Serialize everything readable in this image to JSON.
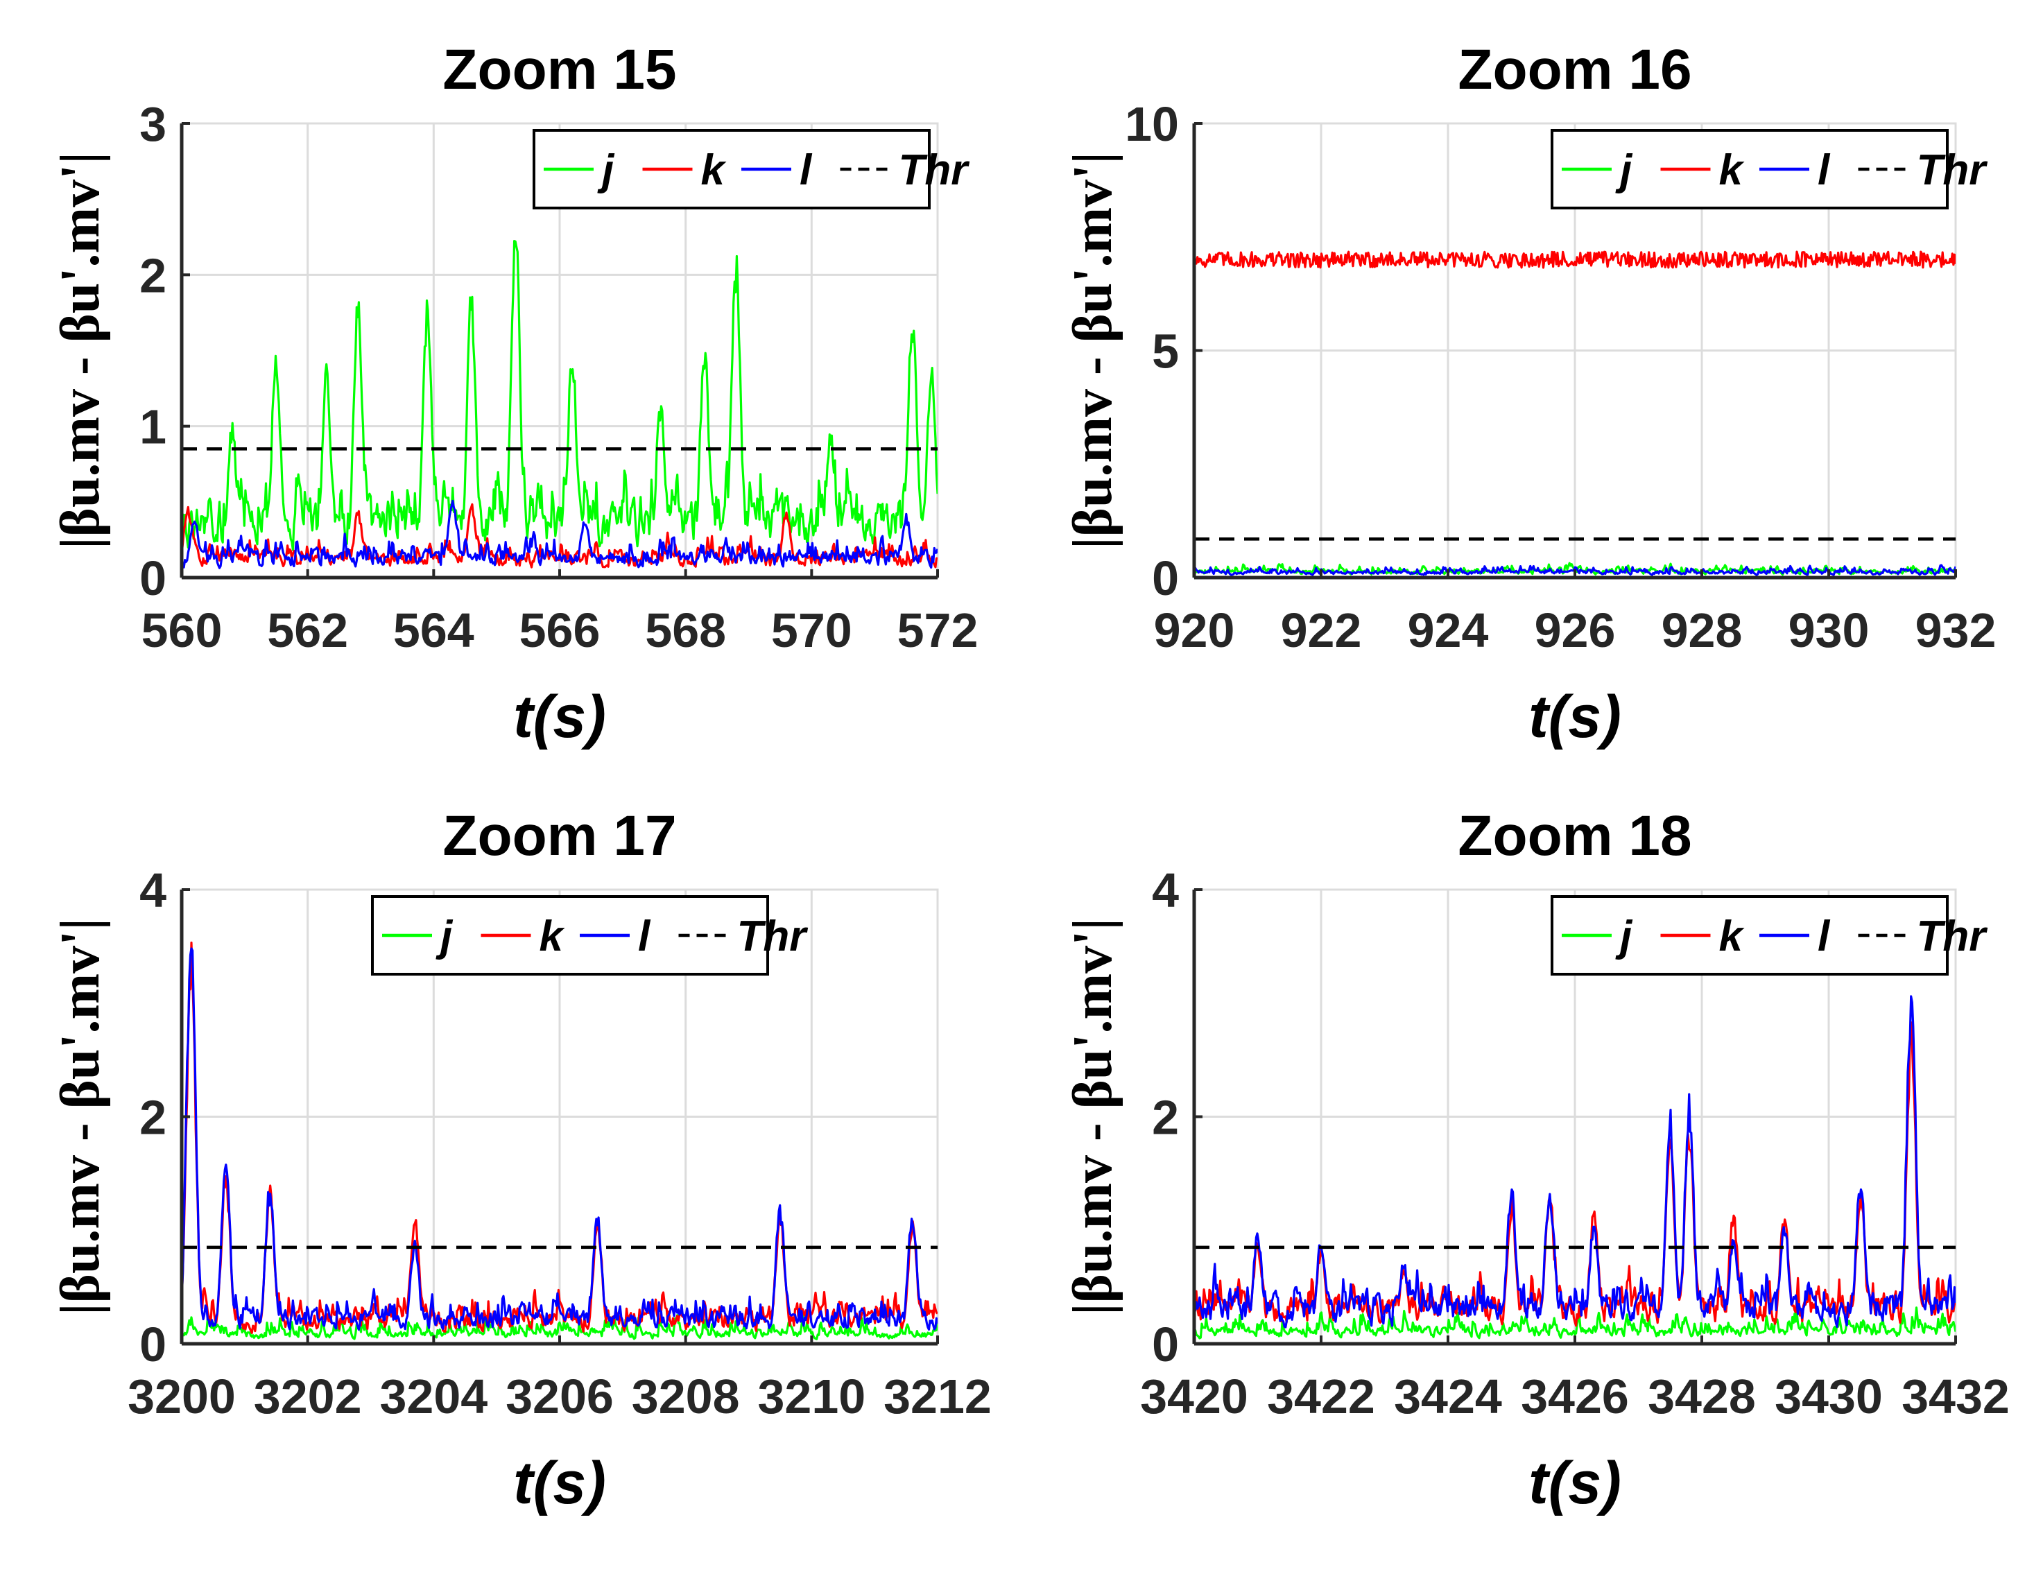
{
  "chart_data": [
    {
      "type": "line",
      "title": "Zoom 15",
      "xlabel": "t(s)",
      "ylabel": "|βu.mv - βu'.mv'|",
      "xlim": [
        560,
        572
      ],
      "ylim": [
        0,
        3
      ],
      "xticks": [
        "560",
        "562",
        "564",
        "566",
        "568",
        "570",
        "572"
      ],
      "yticks": [
        "0",
        "1",
        "2",
        "3"
      ],
      "legend": "top-right",
      "threshold": 0.85,
      "series": [
        {
          "name": "j",
          "color": "#00ff00",
          "baseline": 0.35,
          "noise": 0.55,
          "peaks": [
            [
              560.8,
              1.05
            ],
            [
              561.5,
              1.55
            ],
            [
              562.3,
              1.45
            ],
            [
              562.8,
              1.95
            ],
            [
              563.9,
              1.9
            ],
            [
              564.6,
              1.95
            ],
            [
              565.3,
              2.42
            ],
            [
              566.2,
              1.55
            ],
            [
              567.6,
              1.2
            ],
            [
              568.3,
              1.62
            ],
            [
              568.8,
              2.22
            ],
            [
              570.3,
              1.0
            ],
            [
              571.6,
              1.82
            ],
            [
              571.9,
              1.48
            ]
          ]
        },
        {
          "name": "k",
          "color": "#ff0000",
          "baseline": 0.12,
          "noise": 0.2,
          "peaks": [
            [
              560.1,
              0.48
            ],
            [
              562.8,
              0.45
            ],
            [
              564.6,
              0.5
            ],
            [
              569.6,
              0.45
            ]
          ]
        },
        {
          "name": "l",
          "color": "#0000ff",
          "baseline": 0.12,
          "noise": 0.22,
          "peaks": [
            [
              560.2,
              0.42
            ],
            [
              564.3,
              0.55
            ],
            [
              566.4,
              0.4
            ],
            [
              571.5,
              0.42
            ]
          ]
        },
        {
          "name": "Thr",
          "color": "#000000",
          "dashed": true
        }
      ]
    },
    {
      "type": "line",
      "title": "Zoom 16",
      "xlabel": "t(s)",
      "ylabel": "|βu.mv - βu'.mv'|",
      "xlim": [
        920,
        932
      ],
      "ylim": [
        0,
        10
      ],
      "xticks": [
        "920",
        "922",
        "924",
        "926",
        "928",
        "930",
        "932"
      ],
      "yticks": [
        "0",
        "5",
        "10"
      ],
      "legend": "top-right",
      "threshold": 0.85,
      "series": [
        {
          "name": "j",
          "color": "#00ff00",
          "baseline": 0.12,
          "noise": 0.25,
          "peaks": []
        },
        {
          "name": "k",
          "color": "#ff0000",
          "baseline": 7.0,
          "noise": 0.35,
          "peaks": [],
          "centered": true
        },
        {
          "name": "l",
          "color": "#0000ff",
          "baseline": 0.1,
          "noise": 0.25,
          "peaks": []
        },
        {
          "name": "Thr",
          "color": "#000000",
          "dashed": true
        }
      ]
    },
    {
      "type": "line",
      "title": "Zoom 17",
      "xlabel": "t(s)",
      "ylabel": "|βu.mv - βu'.mv'|",
      "xlim": [
        3200,
        3212
      ],
      "ylim": [
        0,
        4
      ],
      "xticks": [
        "3200",
        "3202",
        "3204",
        "3206",
        "3208",
        "3210",
        "3212"
      ],
      "yticks": [
        "0",
        "2",
        "4"
      ],
      "legend": "top-right",
      "threshold": 0.85,
      "series": [
        {
          "name": "j",
          "color": "#00ff00",
          "baseline": 0.08,
          "noise": 0.25,
          "peaks": []
        },
        {
          "name": "k",
          "color": "#ff0000",
          "baseline": 0.2,
          "noise": 0.35,
          "peaks": [
            [
              3200.15,
              3.6
            ],
            [
              3200.7,
              1.55
            ],
            [
              3201.4,
              1.4
            ],
            [
              3203.7,
              1.15
            ],
            [
              3206.6,
              1.1
            ],
            [
              3209.5,
              1.2
            ],
            [
              3211.6,
              1.1
            ]
          ]
        },
        {
          "name": "l",
          "color": "#0000ff",
          "baseline": 0.2,
          "noise": 0.35,
          "peaks": [
            [
              3200.15,
              3.8
            ],
            [
              3200.7,
              1.65
            ],
            [
              3201.4,
              1.45
            ],
            [
              3203.7,
              0.95
            ],
            [
              3206.6,
              1.2
            ],
            [
              3209.5,
              1.25
            ],
            [
              3211.6,
              1.2
            ]
          ]
        },
        {
          "name": "Thr",
          "color": "#000000",
          "dashed": true
        }
      ]
    },
    {
      "type": "line",
      "title": "Zoom 18",
      "xlabel": "t(s)",
      "ylabel": "|βu.mv - βu'.mv'|",
      "xlim": [
        3420,
        3432
      ],
      "ylim": [
        0,
        4
      ],
      "xticks": [
        "3420",
        "3422",
        "3424",
        "3426",
        "3428",
        "3430",
        "3432"
      ],
      "yticks": [
        "0",
        "2",
        "4"
      ],
      "legend": "top-right",
      "threshold": 0.85,
      "series": [
        {
          "name": "j",
          "color": "#00ff00",
          "baseline": 0.1,
          "noise": 0.3,
          "peaks": []
        },
        {
          "name": "k",
          "color": "#ff0000",
          "baseline": 0.3,
          "noise": 0.4,
          "peaks": [
            [
              3421.0,
              0.95
            ],
            [
              3422.0,
              0.9
            ],
            [
              3423.3,
              0.7
            ],
            [
              3425.0,
              1.3
            ],
            [
              3425.6,
              1.4
            ],
            [
              3426.3,
              1.2
            ],
            [
              3427.5,
              1.95
            ],
            [
              3427.8,
              2.0
            ],
            [
              3428.5,
              1.2
            ],
            [
              3429.3,
              1.2
            ],
            [
              3430.5,
              1.4
            ],
            [
              3431.3,
              2.9
            ]
          ]
        },
        {
          "name": "l",
          "color": "#0000ff",
          "baseline": 0.3,
          "noise": 0.4,
          "peaks": [
            [
              3421.0,
              1.0
            ],
            [
              3422.0,
              0.95
            ],
            [
              3423.3,
              0.75
            ],
            [
              3425.0,
              1.45
            ],
            [
              3425.6,
              1.45
            ],
            [
              3426.3,
              1.1
            ],
            [
              3427.5,
              2.1
            ],
            [
              3427.8,
              2.2
            ],
            [
              3428.5,
              1.0
            ],
            [
              3429.3,
              1.1
            ],
            [
              3430.5,
              1.5
            ],
            [
              3431.3,
              3.25
            ]
          ]
        },
        {
          "name": "Thr",
          "color": "#000000",
          "dashed": true
        }
      ]
    }
  ]
}
